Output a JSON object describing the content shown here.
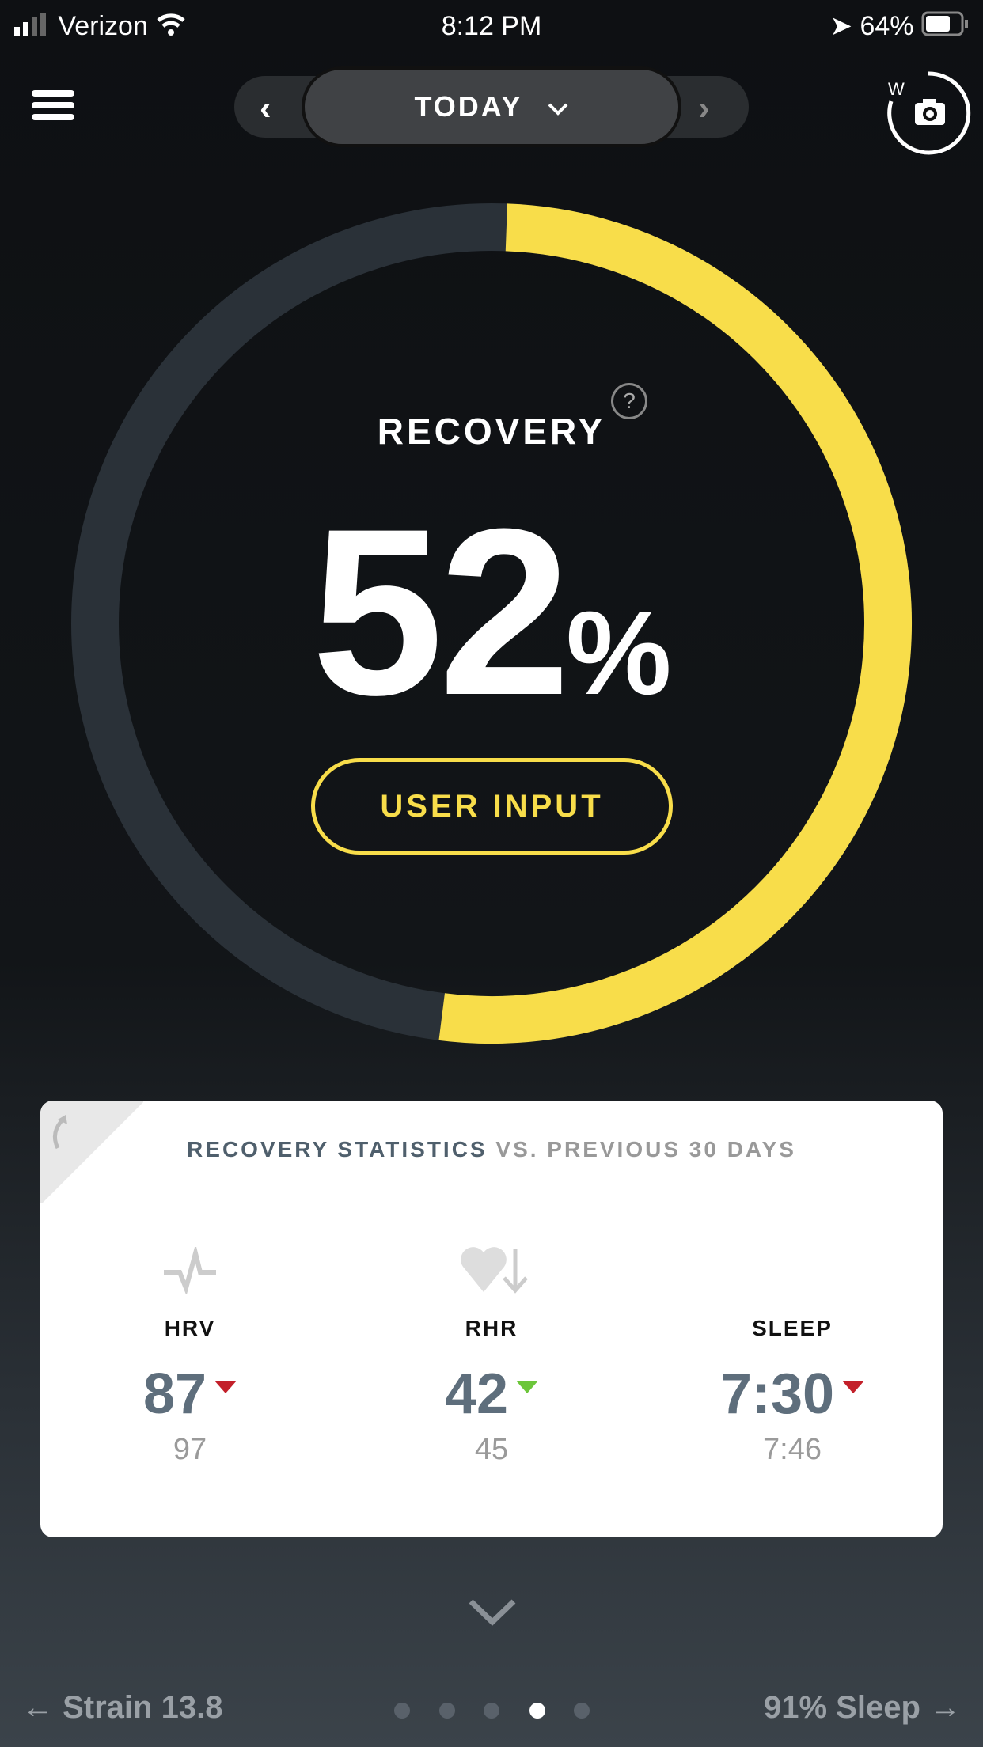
{
  "status_bar": {
    "carrier": "Verizon",
    "time": "8:12 PM",
    "battery": "64%"
  },
  "nav": {
    "date_label": "TODAY"
  },
  "recovery": {
    "title": "RECOVERY",
    "value": "52",
    "unit": "%",
    "percent": 52,
    "help": "?",
    "button": "USER INPUT",
    "accent": "#f8dd4a",
    "track": "#2a3138"
  },
  "stats": {
    "title": "RECOVERY STATISTICS",
    "title_suffix": "VS. PREVIOUS 30 DAYS",
    "items": [
      {
        "label": "HRV",
        "value": "87",
        "previous": "97",
        "trend": "down",
        "trend_color": "#c3202a",
        "icon": "hrv-pulse-icon"
      },
      {
        "label": "RHR",
        "value": "42",
        "previous": "45",
        "trend": "down",
        "trend_color": "#6cc63a",
        "icon": "heart-down-icon"
      },
      {
        "label": "SLEEP",
        "value": "7:30",
        "previous": "7:46",
        "trend": "down",
        "trend_color": "#c3202a",
        "icon": "moon-icon"
      }
    ]
  },
  "footer": {
    "prev": "← Strain 13.8",
    "next": "91% Sleep →",
    "pages": 5,
    "active_page": 4
  }
}
